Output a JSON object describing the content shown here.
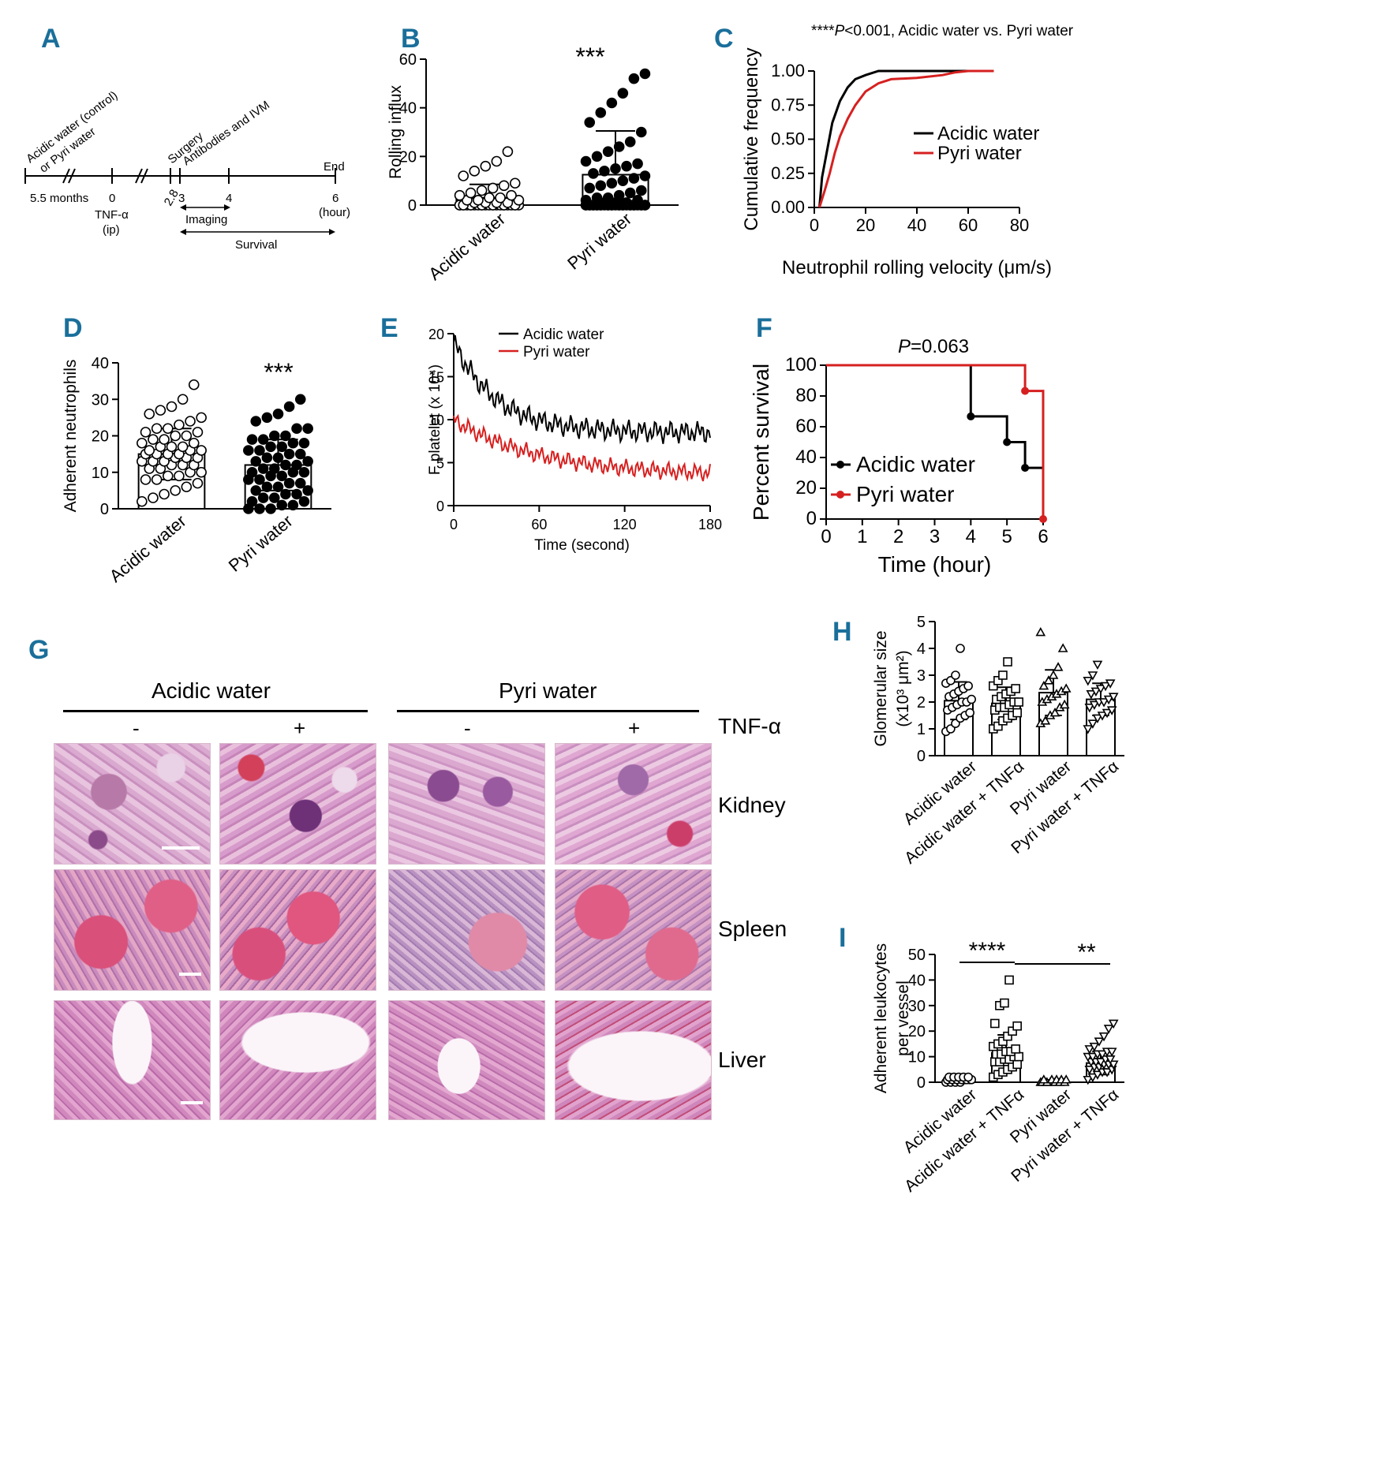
{
  "panels": {
    "A": {
      "label": "A",
      "treatment": [
        "Acidic water (control)",
        "or Pyri water"
      ],
      "ticks": [
        "5.5 months",
        "0",
        "2.8",
        "3",
        "4",
        "6"
      ],
      "events": [
        "Surgery",
        "Antibodies and IVM",
        "End"
      ],
      "hour_unit": "(hour)",
      "tnf": [
        "TNF-α",
        "(ip)"
      ],
      "imaging": "Imaging",
      "survival": "Survival"
    },
    "B": {
      "label": "B",
      "sig": "***"
    },
    "C": {
      "label": "C",
      "annotation_star": "****",
      "annotation_p": "P",
      "annotation_rest": "<0.001, Acidic water vs. Pyri water"
    },
    "D": {
      "label": "D",
      "sig": "***"
    },
    "E": {
      "label": "E"
    },
    "F": {
      "label": "F",
      "p_label": "P",
      "p_value": "=0.063"
    },
    "G": {
      "label": "G",
      "groups": [
        "Acidic water",
        "Pyri water"
      ],
      "tnf_signs": [
        "-",
        "+",
        "-",
        "+"
      ],
      "tnf_label": "TNF-α",
      "tissues": [
        "Kidney",
        "Spleen",
        "Liver"
      ]
    },
    "H": {
      "label": "H"
    },
    "I": {
      "label": "I",
      "sig1": "****",
      "sig2": "**"
    }
  },
  "chart_data": [
    {
      "id": "B",
      "type": "bar",
      "ylabel": "Rolling influx",
      "categories": [
        "Acidic water",
        "Pyri water"
      ],
      "values": [
        3,
        12.5
      ],
      "error": [
        5.5,
        18
      ],
      "ylim": [
        0,
        60
      ],
      "yticks": [
        0,
        20,
        40,
        60
      ],
      "points": [
        [
          0,
          0,
          0,
          0,
          0,
          0,
          0,
          0,
          0,
          0,
          0,
          0,
          0,
          0,
          0,
          0,
          0,
          0,
          0,
          0,
          0,
          0,
          0,
          0,
          1,
          1,
          1,
          1,
          2,
          2,
          2,
          3,
          3,
          4,
          4,
          5,
          6,
          7,
          8,
          9,
          12,
          14,
          16,
          18,
          22
        ],
        [
          0,
          0,
          0,
          0,
          0,
          0,
          0,
          0,
          0,
          0,
          0,
          0,
          0,
          0,
          0,
          0,
          0,
          0,
          0,
          0,
          0,
          0,
          0,
          0,
          0,
          0,
          0,
          0,
          0,
          0,
          1,
          1,
          1,
          2,
          2,
          3,
          3,
          4,
          5,
          6,
          7,
          8,
          9,
          10,
          11,
          12,
          13,
          14,
          15,
          16,
          17,
          18,
          20,
          22,
          24,
          26,
          30,
          34,
          38,
          42,
          46,
          52,
          54
        ]
      ],
      "filled": [
        false,
        true
      ],
      "colors": [
        "#000000",
        "#000000"
      ]
    },
    {
      "id": "C",
      "type": "line",
      "xlabel": "Neutrophil rolling velocity (μm/s)",
      "ylabel": "Cumulative frequency",
      "xlim": [
        0,
        80
      ],
      "xticks": [
        0,
        20,
        40,
        60,
        80
      ],
      "ylim": [
        0,
        1
      ],
      "yticks": [
        "0.00",
        "0.25",
        "0.50",
        "0.75",
        "1.00"
      ],
      "series": [
        {
          "name": "Acidic water",
          "color": "#000000",
          "x": [
            2,
            3,
            5,
            7,
            10,
            13,
            16,
            20,
            25,
            30,
            70
          ],
          "y": [
            0.0,
            0.22,
            0.42,
            0.62,
            0.78,
            0.88,
            0.94,
            0.97,
            1.0,
            1.0,
            1.0
          ]
        },
        {
          "name": "Pyri water",
          "color": "#d62020",
          "x": [
            2,
            4,
            6,
            8,
            10,
            13,
            16,
            20,
            25,
            30,
            40,
            50,
            55,
            60,
            70
          ],
          "y": [
            0.0,
            0.12,
            0.25,
            0.4,
            0.52,
            0.65,
            0.75,
            0.85,
            0.91,
            0.94,
            0.95,
            0.97,
            0.99,
            1.0,
            1.0
          ]
        }
      ],
      "legend": "right"
    },
    {
      "id": "D",
      "type": "bar",
      "ylabel": "Adherent neutrophils",
      "categories": [
        "Acidic water",
        "Pyri water"
      ],
      "values": [
        15,
        12
      ],
      "error": [
        7,
        7
      ],
      "ylim": [
        0,
        40
      ],
      "yticks": [
        0,
        10,
        20,
        30,
        40
      ],
      "points": [
        [
          2,
          3,
          4,
          5,
          6,
          7,
          8,
          8,
          9,
          9,
          10,
          10,
          11,
          11,
          12,
          12,
          12,
          13,
          13,
          13,
          14,
          14,
          14,
          15,
          15,
          15,
          15,
          16,
          16,
          16,
          17,
          17,
          17,
          18,
          18,
          19,
          19,
          20,
          20,
          21,
          21,
          22,
          22,
          23,
          24,
          25,
          26,
          27,
          28,
          30,
          34
        ],
        [
          0,
          0,
          0,
          1,
          1,
          2,
          2,
          3,
          3,
          4,
          4,
          5,
          5,
          6,
          6,
          7,
          7,
          8,
          8,
          9,
          9,
          10,
          10,
          10,
          11,
          11,
          12,
          12,
          13,
          13,
          14,
          14,
          15,
          15,
          16,
          16,
          17,
          17,
          18,
          18,
          19,
          19,
          20,
          20,
          22,
          22,
          24,
          25,
          26,
          28,
          30
        ]
      ],
      "filled": [
        false,
        true
      ],
      "colors": [
        "#000000",
        "#000000"
      ]
    },
    {
      "id": "E",
      "type": "line",
      "xlabel": "Time (second)",
      "ylabel": "F platelet (x 10⁴)",
      "xlim": [
        0,
        180
      ],
      "xticks": [
        0,
        60,
        120,
        180
      ],
      "ylim": [
        0,
        20
      ],
      "yticks": [
        0,
        5,
        10,
        15,
        20
      ],
      "series": [
        {
          "name": "Acidic water",
          "color": "#000000",
          "start": 19,
          "end": 8.5,
          "tau": 30,
          "noise": 1.4
        },
        {
          "name": "Pyri water",
          "color": "#d62020",
          "start": 10,
          "end": 3.5,
          "tau": 60,
          "noise": 1.1
        }
      ],
      "legend": "top"
    },
    {
      "id": "F",
      "type": "line",
      "xlabel": "Time (hour)",
      "ylabel": "Percent survival",
      "xlim": [
        0,
        6
      ],
      "xticks": [
        0,
        1,
        2,
        3,
        4,
        5,
        6
      ],
      "ylim": [
        0,
        100
      ],
      "yticks": [
        0,
        20,
        40,
        60,
        80,
        100
      ],
      "series": [
        {
          "name": "Acidic water",
          "color": "#000000",
          "steps": [
            [
              0,
              100
            ],
            [
              4,
              100
            ],
            [
              4,
              66.7
            ],
            [
              5,
              66.7
            ],
            [
              5,
              50
            ],
            [
              5.5,
              50
            ],
            [
              5.5,
              33.3
            ],
            [
              6,
              33.3
            ]
          ],
          "markers": [
            [
              4,
              66.7
            ],
            [
              5,
              50
            ],
            [
              5.5,
              33.3
            ]
          ]
        },
        {
          "name": "Pyri water",
          "color": "#d62020",
          "steps": [
            [
              0,
              100
            ],
            [
              5.5,
              100
            ],
            [
              5.5,
              83.3
            ],
            [
              6,
              83.3
            ],
            [
              6,
              0
            ]
          ],
          "markers": [
            [
              5.5,
              83.3
            ],
            [
              6,
              0
            ]
          ]
        }
      ],
      "legend": "left"
    },
    {
      "id": "H",
      "type": "bar",
      "ylabel": [
        "Glomerular size",
        "(x10³ μm²)"
      ],
      "categories": [
        "Acidic water",
        "Acidic water + TNFα",
        "Pyri water",
        "Pyri water + TNFα"
      ],
      "values": [
        2.05,
        1.95,
        2.35,
        2.1
      ],
      "error": [
        0.7,
        0.6,
        0.85,
        0.6
      ],
      "ylim": [
        0,
        5
      ],
      "yticks": [
        0,
        1,
        2,
        3,
        4,
        5
      ],
      "points": [
        [
          0.9,
          1.0,
          1.2,
          1.4,
          1.5,
          1.6,
          1.7,
          1.8,
          1.9,
          2.0,
          2.0,
          2.1,
          2.2,
          2.3,
          2.4,
          2.5,
          2.6,
          2.7,
          2.8,
          3.0,
          4.0
        ],
        [
          1.0,
          1.1,
          1.3,
          1.4,
          1.5,
          1.6,
          1.7,
          1.8,
          1.8,
          1.9,
          2.0,
          2.0,
          2.1,
          2.2,
          2.3,
          2.4,
          2.5,
          2.6,
          2.8,
          3.0,
          3.5
        ],
        [
          1.2,
          1.3,
          1.5,
          1.6,
          1.8,
          1.9,
          2.0,
          2.1,
          2.2,
          2.3,
          2.4,
          2.5,
          2.6,
          2.8,
          3.0,
          3.3,
          4.0,
          4.6
        ],
        [
          1.0,
          1.2,
          1.4,
          1.5,
          1.6,
          1.7,
          1.8,
          1.9,
          2.0,
          2.0,
          2.1,
          2.2,
          2.3,
          2.4,
          2.5,
          2.6,
          2.7,
          2.8,
          3.0,
          3.4
        ]
      ],
      "markers": [
        "circle",
        "square",
        "triangle",
        "triangle-down"
      ]
    },
    {
      "id": "I",
      "type": "bar",
      "ylabel": [
        "Adherent leukocytes",
        "per vessel"
      ],
      "categories": [
        "Acidic water",
        "Acidic water + TNFα",
        "Pyri water",
        "Pyri water + TNFα"
      ],
      "values": [
        1.2,
        11.5,
        0.5,
        7.5
      ],
      "error": [
        0.6,
        7,
        0.4,
        4.5
      ],
      "ylim": [
        0,
        50
      ],
      "yticks": [
        0,
        10,
        20,
        30,
        40,
        50
      ],
      "points": [
        [
          0,
          0,
          0,
          0,
          1,
          1,
          1,
          1,
          1,
          1,
          1,
          1,
          2,
          2,
          2,
          2,
          2
        ],
        [
          2,
          3,
          4,
          5,
          6,
          7,
          8,
          8,
          9,
          9,
          10,
          10,
          11,
          11,
          12,
          12,
          13,
          14,
          15,
          16,
          18,
          20,
          22,
          23,
          30,
          31,
          40
        ],
        [
          0,
          0,
          0,
          0,
          0,
          0,
          0,
          0,
          1,
          1,
          1,
          1,
          1
        ],
        [
          1,
          2,
          3,
          4,
          4,
          5,
          5,
          6,
          6,
          7,
          7,
          7,
          8,
          8,
          8,
          9,
          9,
          10,
          10,
          11,
          11,
          12,
          12,
          13,
          14,
          16,
          18,
          21,
          23
        ]
      ],
      "markers": [
        "circle",
        "square",
        "triangle",
        "triangle-down"
      ]
    }
  ]
}
